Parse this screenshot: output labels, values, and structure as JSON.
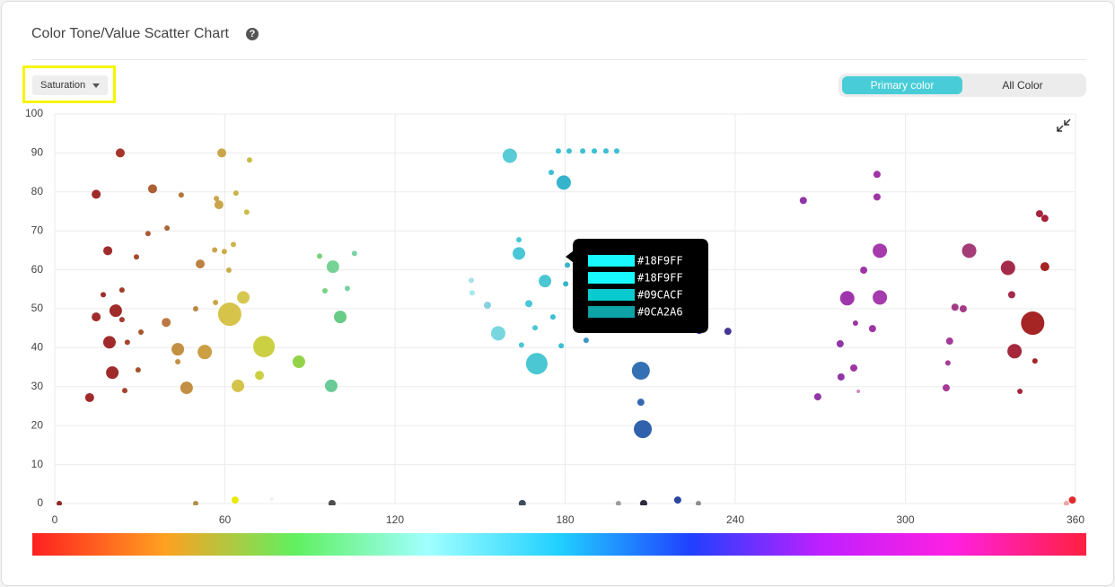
{
  "header": {
    "title": "Color Tone/Value Scatter Chart"
  },
  "controls": {
    "dropdown": "Saturation",
    "toggle": [
      "Primary color",
      "All Color"
    ]
  },
  "chart_data": {
    "type": "scatter",
    "x": [
      1.6,
      14.6,
      23.1,
      18.7,
      14.6,
      21.5,
      19.3,
      20.3,
      12.3,
      17.1,
      23.7,
      23.7,
      25.6,
      28.8,
      30.4,
      29.4,
      24.7,
      34.5,
      32.9,
      39.6,
      44.6,
      39.3,
      43.4,
      43.4,
      46.5,
      51.3,
      49.7,
      52.9,
      56.7,
      56.4,
      57,
      57.9,
      58.9,
      59.8,
      61.4,
      63,
      63.9,
      68.7,
      67.7,
      61.7,
      66.5,
      73.8,
      72.2,
      64.6,
      63.6,
      49.7,
      76.6,
      86.1,
      93.4,
      98.1,
      95.3,
      100.7,
      97.5,
      103.2,
      105.7,
      97.8,
      146.9,
      147.2,
      152.6,
      156.4,
      160.5,
      163.7,
      163.7,
      164.6,
      167.2,
      170,
      172.9,
      169.4,
      175.1,
      175.7,
      178.6,
      179.5,
      180.2,
      180.8,
      177.6,
      181.4,
      186.2,
      190.3,
      194.4,
      198.2,
      187.4,
      164.9,
      206.7,
      206.7,
      207.4,
      207.7,
      198.8,
      219.7,
      227,
      227.3,
      237.4,
      264,
      269.1,
      277,
      277.3,
      279.5,
      281.8,
      282.4,
      283.4,
      285.3,
      288.4,
      290,
      290,
      291,
      291,
      314.4,
      315,
      315.6,
      317.5,
      320.4,
      322.5,
      336.2,
      337.5,
      338.5,
      340.4,
      344.9,
      345.7,
      347.3,
      349.2,
      349.2,
      358.9,
      356.8
    ],
    "values": [
      0,
      79.4,
      90,
      64.9,
      47.9,
      49.5,
      41.4,
      33.6,
      27.2,
      53.6,
      54.8,
      47.2,
      41.4,
      63.3,
      44,
      34.3,
      29,
      80.8,
      69.3,
      70.7,
      79.2,
      46.5,
      39.6,
      36.4,
      29.7,
      61.5,
      50,
      38.9,
      51.6,
      65.1,
      78.3,
      76.7,
      90,
      64.7,
      59.9,
      66.5,
      79.7,
      88.2,
      74.8,
      48.6,
      52.9,
      40.3,
      32.9,
      30.2,
      0.9,
      0,
      1.2,
      36.4,
      63.5,
      60.8,
      54.6,
      47.9,
      30.2,
      55.2,
      64.2,
      0,
      57.3,
      54.1,
      50.9,
      43.7,
      89.3,
      67.7,
      64.2,
      40.7,
      51.3,
      35.9,
      57.1,
      45.1,
      85,
      47.9,
      40.5,
      82.4,
      56.4,
      61.2,
      90.5,
      90.5,
      90.5,
      90.5,
      90.5,
      90.5,
      41.9,
      0,
      34.1,
      26,
      19.1,
      0,
      0,
      0.9,
      0,
      44.4,
      44.2,
      77.8,
      27.4,
      41,
      32.5,
      52.7,
      34.8,
      46.3,
      28.8,
      59.9,
      44.9,
      84.5,
      78.7,
      64.9,
      52.9,
      29.7,
      36.1,
      41.7,
      50.4,
      50,
      64.9,
      60.5,
      53.6,
      39.1,
      28.8,
      46.3,
      36.6,
      74.4,
      73.2,
      60.8,
      0.9,
      0
    ],
    "sizes": [
      3,
      5,
      5,
      5,
      5,
      7,
      7,
      7,
      5,
      3,
      3,
      3,
      3,
      3,
      3,
      3,
      3,
      5,
      3,
      3,
      3,
      5,
      7,
      3,
      7,
      5,
      3,
      8,
      3,
      3,
      3,
      5,
      5,
      3,
      3,
      3,
      3,
      3,
      3,
      13,
      7,
      12,
      5,
      7,
      4,
      3,
      2,
      7,
      3,
      7,
      3,
      7,
      7,
      3,
      3,
      4,
      3,
      3,
      4,
      8,
      8,
      3,
      7,
      3,
      4,
      12,
      7,
      3,
      3,
      3,
      3,
      8,
      3,
      3,
      3,
      3,
      3,
      3,
      3,
      3,
      3,
      4,
      10,
      4,
      10,
      4,
      3,
      4,
      3,
      4,
      4,
      4,
      4,
      4,
      4,
      8,
      4,
      3,
      2,
      4,
      4,
      4,
      4,
      8,
      8,
      4,
      3,
      4,
      4,
      4,
      8,
      8,
      4,
      8,
      3,
      13,
      3,
      4,
      4,
      5,
      4,
      3
    ],
    "colors": [
      "#8b1a1a",
      "#9b2020",
      "#a02a20",
      "#9b2020",
      "#9b2020",
      "#9b2020",
      "#9b2020",
      "#9b2020",
      "#9b2020",
      "#9b2020",
      "#a03020",
      "#a03020",
      "#a03a20",
      "#a04020",
      "#a04a20",
      "#a04a20",
      "#a03a20",
      "#a8592a",
      "#a8502a",
      "#a8602a",
      "#b0702a",
      "#b8703a",
      "#c08a3a",
      "#c08a3a",
      "#c0893b",
      "#b87a3a",
      "#b8803a",
      "#c89a3a",
      "#c8a040",
      "#c8a040",
      "#c8a040",
      "#c8a040",
      "#c8a040",
      "#c8a840",
      "#c8a840",
      "#c8b040",
      "#c8b040",
      "#c8b840",
      "#c8b840",
      "#d4c040",
      "#d4c448",
      "#c8cc38",
      "#c8cc38",
      "#d4c040",
      "#e8e800",
      "#b08a3a",
      "#eeeeee",
      "#8ed040",
      "#70d070",
      "#70d090",
      "#70d080",
      "#60c880",
      "#60c890",
      "#70d0a0",
      "#70d0a0",
      "#444444",
      "#a0e0e8",
      "#a0e8e8",
      "#80d0e0",
      "#70d4dc",
      "#50c8d4",
      "#40c4d4",
      "#40c4d4",
      "#40c4d4",
      "#40c4d4",
      "#40c4d0",
      "#40c4d0",
      "#40c4d0",
      "#30bcd0",
      "#30bcd0",
      "#30bcd0",
      "#2ab0c8",
      "#2ab0c8",
      "#2ab0c8",
      "#30bcd0",
      "#30bcd0",
      "#30bcd0",
      "#30bcd0",
      "#30bcd0",
      "#30bcd0",
      "#3090c0",
      "#334455",
      "#2a68b0",
      "#2a60b0",
      "#2558a8",
      "#222233",
      "#999999",
      "#1c3c9c",
      "#888888",
      "#3a3aa0",
      "#3a2a90",
      "#8a2aa0",
      "#8a2aa0",
      "#8a2aa0",
      "#8a2aa0",
      "#9a2aa8",
      "#9a2aa0",
      "#9a2aa0",
      "#d080c0",
      "#9a2aa0",
      "#9a2aa0",
      "#9a2aa0",
      "#9a2aa0",
      "#a030a8",
      "#a030a8",
      "#a03090",
      "#a03090",
      "#a03090",
      "#a03080",
      "#a03080",
      "#a03070",
      "#a02040",
      "#a02040",
      "#a01c30",
      "#a01c30",
      "#a01818",
      "#a01818",
      "#a01830",
      "#a01830",
      "#a01818",
      "#e02020",
      "#f0a0a0"
    ],
    "xlim": [
      0,
      360
    ],
    "xticks": [
      0,
      60,
      120,
      180,
      240,
      300,
      360
    ],
    "ylim": [
      0,
      100
    ],
    "yticks": [
      0,
      10,
      20,
      30,
      40,
      50,
      60,
      70,
      80,
      90,
      100
    ],
    "grid": true
  },
  "tooltip": {
    "colors": [
      "#18F9FF",
      "#18F9FF",
      "#09CACF",
      "#0CA2A6"
    ]
  }
}
